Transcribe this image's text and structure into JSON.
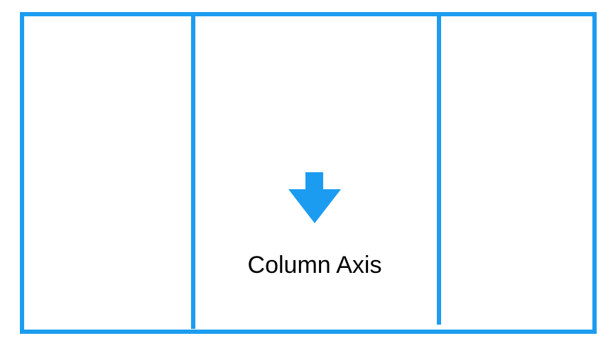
{
  "diagram": {
    "label": "Column Axis",
    "accent_color": "#1c9cf0",
    "arrow_icon": "arrow-down-icon",
    "columns": 3
  }
}
